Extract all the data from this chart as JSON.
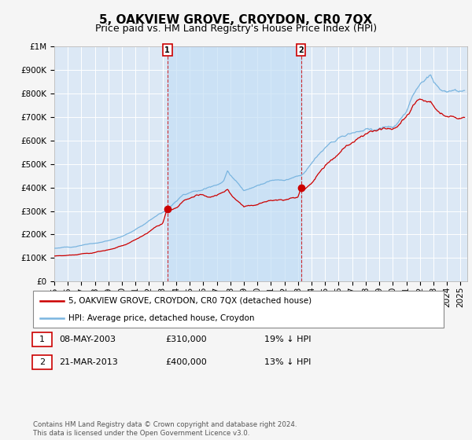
{
  "title": "5, OAKVIEW GROVE, CROYDON, CR0 7QX",
  "subtitle": "Price paid vs. HM Land Registry's House Price Index (HPI)",
  "ytick_values": [
    0,
    100000,
    200000,
    300000,
    400000,
    500000,
    600000,
    700000,
    800000,
    900000,
    1000000
  ],
  "ylim": [
    0,
    1000000
  ],
  "xlim_start": 1995.0,
  "xlim_end": 2025.5,
  "hpi_color": "#7ab5e0",
  "price_color": "#cc0000",
  "background_color": "#f5f5f5",
  "plot_bg_color": "#dce8f5",
  "shade_color": "#c5dff5",
  "grid_color": "#ffffff",
  "legend_entry1": "5, OAKVIEW GROVE, CROYDON, CR0 7QX (detached house)",
  "legend_entry2": "HPI: Average price, detached house, Croydon",
  "table_rows": [
    {
      "num": "1",
      "date": "08-MAY-2003",
      "price": "£310,000",
      "hpi": "19% ↓ HPI"
    },
    {
      "num": "2",
      "date": "21-MAR-2013",
      "price": "£400,000",
      "hpi": "13% ↓ HPI"
    }
  ],
  "footnote": "Contains HM Land Registry data © Crown copyright and database right 2024.\nThis data is licensed under the Open Government Licence v3.0.",
  "sale1_year": 2003.35,
  "sale1_price": 310000,
  "sale2_year": 2013.22,
  "sale2_price": 400000,
  "title_fontsize": 11,
  "subtitle_fontsize": 9,
  "tick_fontsize": 7.5
}
